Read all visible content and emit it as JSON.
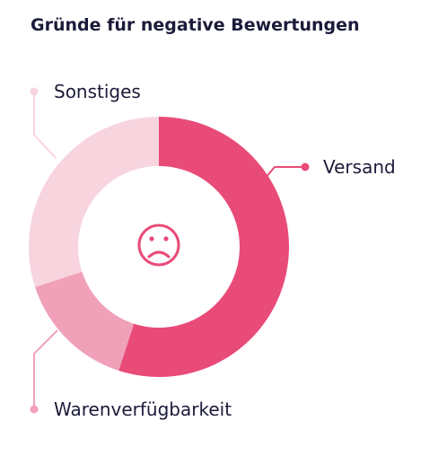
{
  "title": "Gründe für negative Bewertungen",
  "chart_data": {
    "type": "pie",
    "categories": [
      "Versand",
      "Warenverfügbarkeit",
      "Sonstiges"
    ],
    "values": [
      55,
      15,
      30
    ],
    "colors": [
      "#e94b78",
      "#f0a0b8",
      "#f8d4df"
    ],
    "center_icon": "sad-face-icon"
  }
}
